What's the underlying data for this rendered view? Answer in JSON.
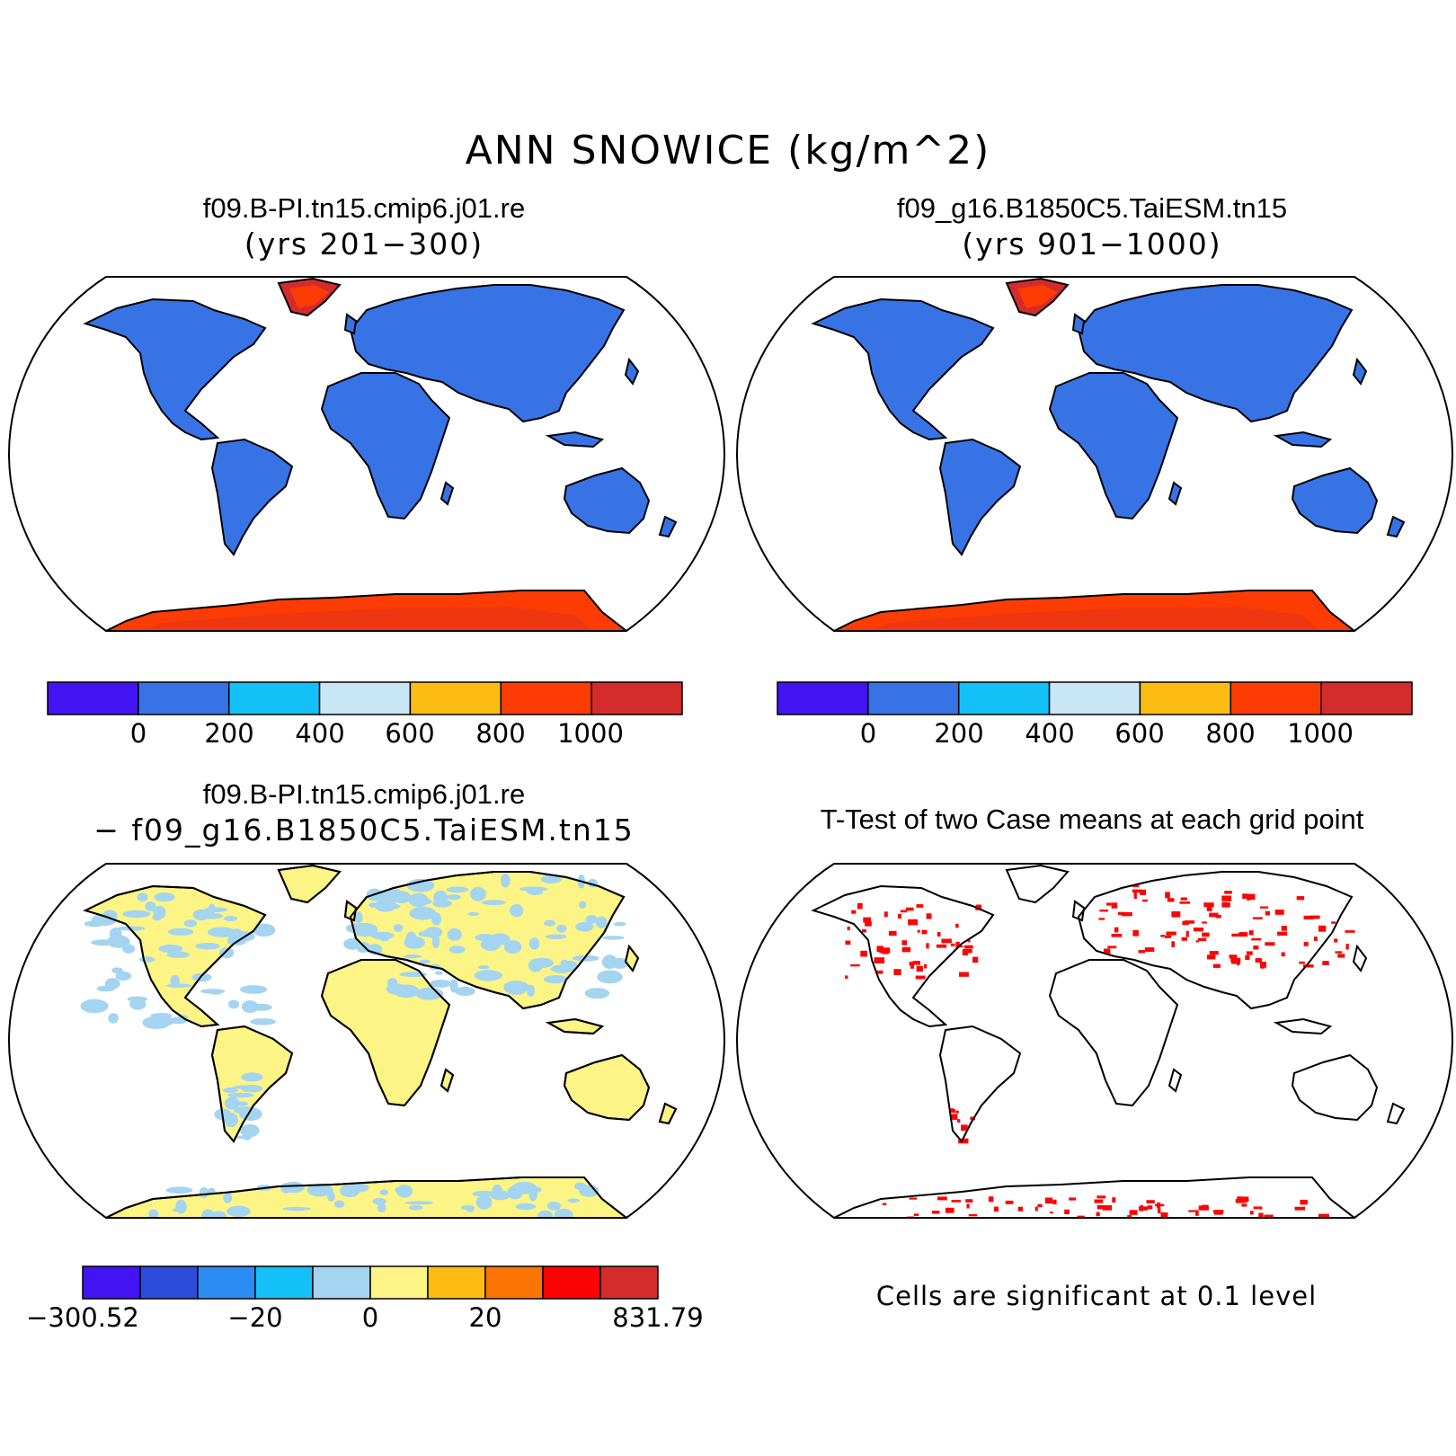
{
  "figure_title": "ANN SNOWICE (kg/m^2)",
  "panels": {
    "top_left": {
      "title": "f09.B-PI.tn15.cmip6.j01.re",
      "subtitle": "(yrs 201−300)"
    },
    "top_right": {
      "title": "f09_g16.B1850C5.TaiESM.tn15",
      "subtitle": "(yrs 901−1000)"
    },
    "bottom_left": {
      "title": "f09.B-PI.tn15.cmip6.j01.re",
      "subtitle": "− f09_g16.B1850C5.TaiESM.tn15"
    },
    "bottom_right": {
      "title": "T-Test of two Case means at each grid point",
      "note": "Cells are significant at 0.1 level"
    }
  },
  "colorbars": {
    "case": {
      "colors": [
        "#4214f4",
        "#3873e6",
        "#14c0f8",
        "#c8e6f6",
        "#fcbc14",
        "#fc3c04",
        "#d42c2c"
      ],
      "labels": [
        "0",
        "200",
        "400",
        "600",
        "800",
        "1000"
      ]
    },
    "diff": {
      "colors": [
        "#4214f4",
        "#2c4cdc",
        "#2c8cf4",
        "#14c0f8",
        "#a4d4f0",
        "#fcf484",
        "#fcbc14",
        "#fc7404",
        "#fc0404",
        "#d42c2c"
      ],
      "labels": [
        "−300.52",
        "−20",
        "0",
        "20",
        "831.79"
      ]
    }
  },
  "map_colors": {
    "land_case": "#3873e6",
    "ice_case": "#fc3c04",
    "greenland_case": "#d42c2c",
    "land_diff": "#fcf484",
    "snow_diff": "#a4d4f0",
    "signif": "#fc0404"
  }
}
